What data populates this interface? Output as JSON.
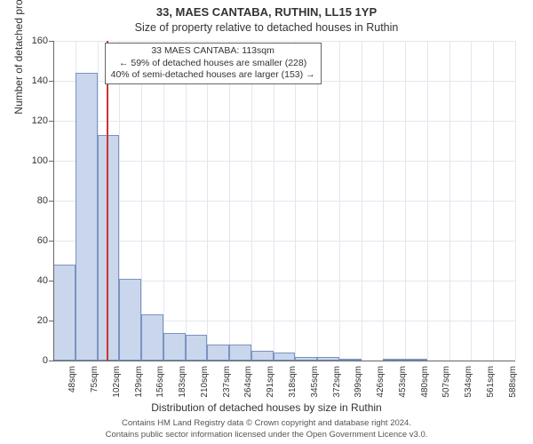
{
  "title_main": "33, MAES CANTABA, RUTHIN, LL15 1YP",
  "title_sub": "Size of property relative to detached houses in Ruthin",
  "ylabel": "Number of detached properties",
  "xlabel": "Distribution of detached houses by size in Ruthin",
  "footer_line1": "Contains HM Land Registry data © Crown copyright and database right 2024.",
  "footer_line2": "Contains public sector information licensed under the Open Government Licence v3.0.",
  "callout_line1": "33 MAES CANTABA: 113sqm",
  "callout_line2": "← 59% of detached houses are smaller (228)",
  "callout_line3": "40% of semi-detached houses are larger (153) →",
  "chart": {
    "type": "histogram",
    "background_color": "#ffffff",
    "grid_color": "#e2e7ef",
    "bar_fill": "#c9d6ec",
    "bar_border": "#7b93c0",
    "axis_color": "#666666",
    "marker_color": "#cc3333",
    "ylim": [
      0,
      160
    ],
    "ytick_step": 20,
    "x_start": 48,
    "x_step": 27,
    "x_count": 21,
    "x_unit": "sqm",
    "values": [
      48,
      144,
      113,
      41,
      23,
      14,
      13,
      8,
      8,
      5,
      4,
      2,
      2,
      1,
      0,
      1,
      1,
      0,
      0,
      0,
      0
    ],
    "marker_x_value": 113,
    "tick_fontsize": 11,
    "label_fontsize": 12,
    "title_fontsize": 13
  }
}
